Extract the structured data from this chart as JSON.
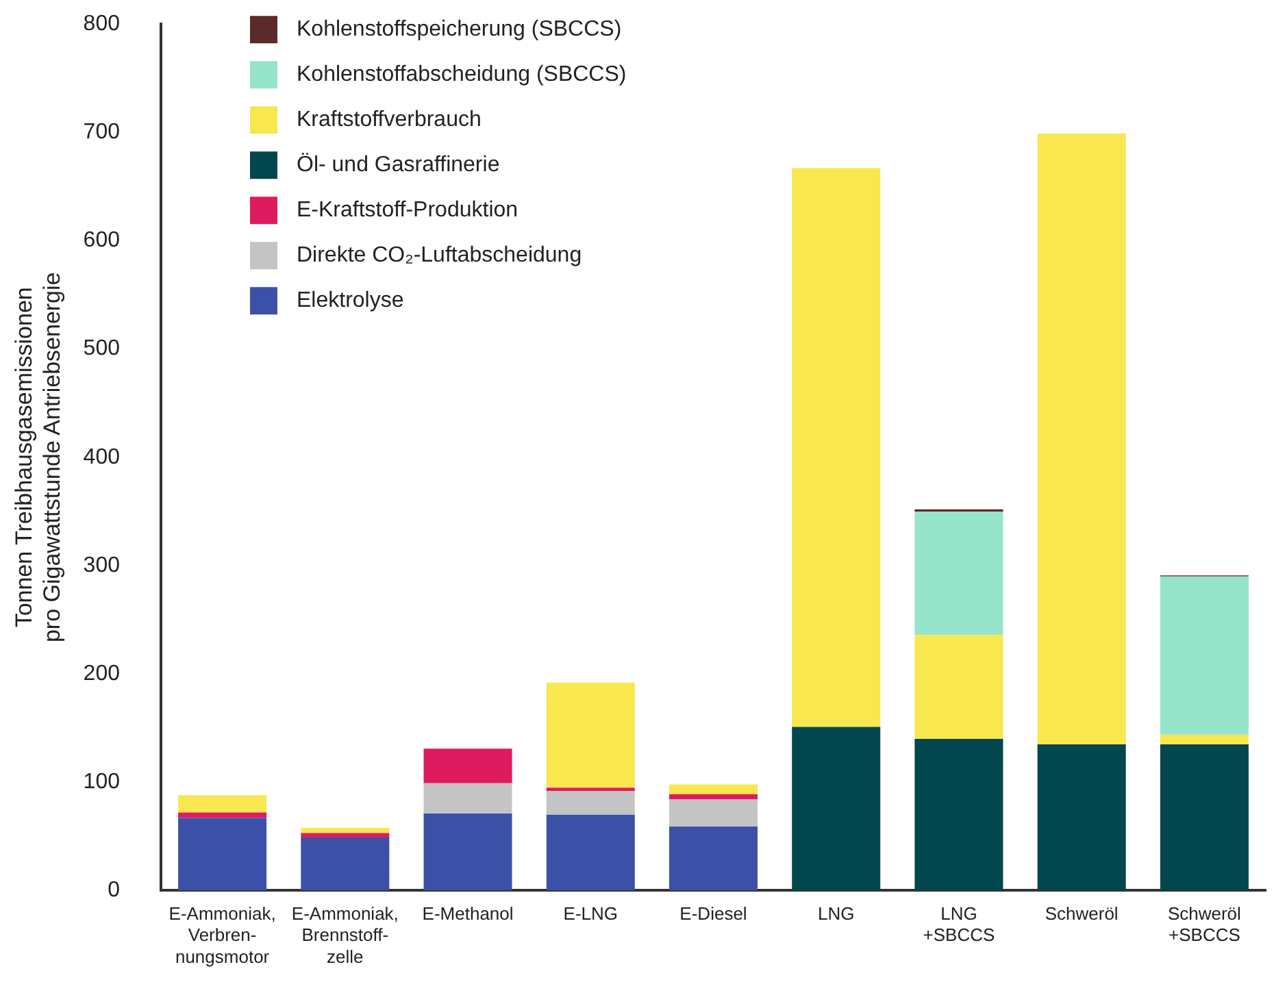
{
  "chart_data": {
    "type": "bar",
    "stacked": true,
    "ylabel": "Tonnen Treibhausgasemissionen\npro Gigawattstunde Antriebsenergie",
    "categories": [
      "E-Ammoniak,\nVerbren-\nnungsmotor",
      "E-Ammoniak,\nBrennstoff-\nzelle",
      "E-Methanol",
      "E-LNG",
      "E-Diesel",
      "LNG",
      "LNG\n+SBCCS",
      "Schweröl",
      "Schweröl\n+SBCCS"
    ],
    "series": [
      {
        "name": "Elektrolyse",
        "color": "#3b51a8",
        "values": [
          67,
          49,
          71,
          70,
          59,
          0,
          0,
          0,
          0
        ]
      },
      {
        "name": "Direkte CO₂-Luftabscheidung",
        "color": "#c4c4c4",
        "values": [
          0,
          0,
          28,
          22,
          25,
          0,
          0,
          0,
          0
        ]
      },
      {
        "name": "E-Kraftstoff-Produktion",
        "color": "#df1b5f",
        "values": [
          5,
          4,
          32,
          3,
          5,
          0,
          0,
          0,
          0
        ]
      },
      {
        "name": "Öl- und Gasraffinerie",
        "color": "#02474d",
        "values": [
          0,
          0,
          0,
          0,
          0,
          151,
          140,
          135,
          135
        ]
      },
      {
        "name": "Kraftstoffverbrauch",
        "color": "#f8e74f",
        "values": [
          16,
          5,
          0,
          97,
          9,
          516,
          96,
          564,
          9
        ]
      },
      {
        "name": "Kohlenstoffabscheidung (SBCCS)",
        "color": "#96e4ca",
        "values": [
          0,
          0,
          0,
          0,
          0,
          0,
          114,
          0,
          146
        ]
      },
      {
        "name": "Kohlenstoffspeicherung (SBCCS)",
        "color": "#5c2a2a",
        "values": [
          0,
          0,
          0,
          0,
          0,
          0,
          2,
          0,
          1
        ]
      }
    ],
    "ylim": [
      0,
      800
    ],
    "yticks": [
      0,
      100,
      200,
      300,
      400,
      500,
      600,
      700,
      800
    ],
    "grid": false,
    "legend": "top left"
  }
}
